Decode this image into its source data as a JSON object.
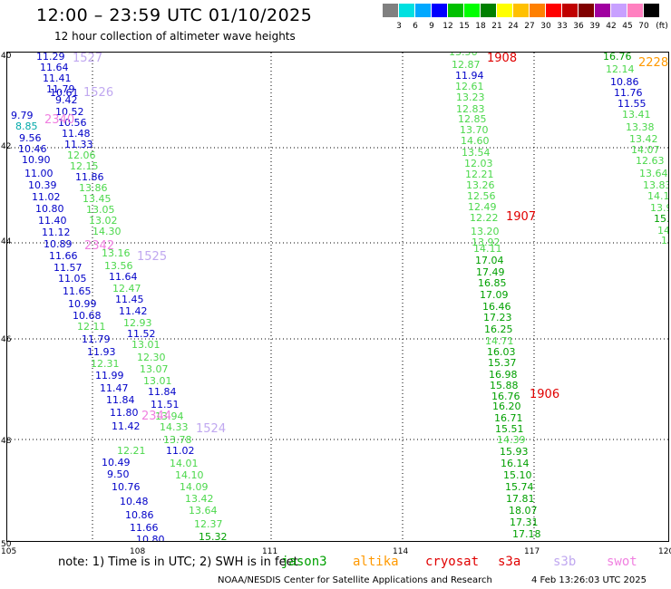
{
  "header": {
    "title": "12:00 – 23:59 UTC 01/10/2025",
    "subtitle": "12 hour collection of altimeter wave heights"
  },
  "colorbar": {
    "unit": "(ft)",
    "colors": [
      "#808080",
      "#00e0e0",
      "#00a8ff",
      "#0000ff",
      "#00c000",
      "#00ff00",
      "#008000",
      "#ffff00",
      "#ffc000",
      "#ff8000",
      "#ff0000",
      "#c00000",
      "#800000",
      "#a000a0",
      "#c8a0ff",
      "#ff80c0",
      "#000000"
    ],
    "labels": [
      "3",
      "6",
      "9",
      "12",
      "15",
      "18",
      "21",
      "24",
      "27",
      "30",
      "33",
      "36",
      "39",
      "42",
      "45",
      "70"
    ]
  },
  "map": {
    "lat_labels": [
      "40",
      "42",
      "44",
      "46",
      "48",
      "50"
    ],
    "lon_labels": [
      "105",
      "108",
      "111",
      "114",
      "117",
      "120"
    ]
  },
  "colors": {
    "blue": "#0000c8",
    "light_green": "#4cd84c",
    "green": "#00a000",
    "teal": "#00a8a8",
    "lavender": "#c0a8f0",
    "pink": "#f080e0",
    "red": "#e00000",
    "orange": "#ff9900"
  },
  "track_labels": [
    {
      "text": "11.29",
      "c": "blue"
    },
    {
      "text": "11.64",
      "c": "blue"
    },
    {
      "text": "11.41",
      "c": "blue"
    },
    {
      "text": "11.79",
      "c": "blue"
    },
    {
      "text": "10.61",
      "c": "blue"
    },
    {
      "text": "9.42",
      "c": "blue"
    },
    {
      "text": "10.52",
      "c": "blue"
    },
    {
      "text": "10.56",
      "c": "blue"
    },
    {
      "text": "11.48",
      "c": "blue"
    },
    {
      "text": "11.33",
      "c": "blue"
    },
    {
      "text": "12.06",
      "c": "light_green"
    },
    {
      "text": "12.15",
      "c": "light_green"
    },
    {
      "text": "11.86",
      "c": "blue"
    },
    {
      "text": "13.86",
      "c": "light_green"
    },
    {
      "text": "13.45",
      "c": "light_green"
    },
    {
      "text": "13.05",
      "c": "light_green"
    },
    {
      "text": "13.02",
      "c": "light_green"
    },
    {
      "text": "14.30",
      "c": "light_green"
    },
    {
      "text": "13.16",
      "c": "light_green"
    },
    {
      "text": "13.56",
      "c": "light_green"
    },
    {
      "text": "11.64",
      "c": "blue"
    },
    {
      "text": "12.47",
      "c": "light_green"
    },
    {
      "text": "11.45",
      "c": "blue"
    },
    {
      "text": "11.42",
      "c": "blue"
    },
    {
      "text": "12.93",
      "c": "light_green"
    },
    {
      "text": "11.52",
      "c": "blue"
    },
    {
      "text": "13.01",
      "c": "light_green"
    },
    {
      "text": "12.30",
      "c": "light_green"
    },
    {
      "text": "13.07",
      "c": "light_green"
    },
    {
      "text": "13.01",
      "c": "light_green"
    },
    {
      "text": "11.84",
      "c": "blue"
    },
    {
      "text": "11.51",
      "c": "blue"
    },
    {
      "text": "13.94",
      "c": "light_green"
    },
    {
      "text": "14.33",
      "c": "light_green"
    },
    {
      "text": "13.78",
      "c": "light_green"
    },
    {
      "text": "9.79",
      "c": "blue"
    },
    {
      "text": "8.85",
      "c": "teal"
    },
    {
      "text": "9.56",
      "c": "blue"
    },
    {
      "text": "10.46",
      "c": "blue"
    },
    {
      "text": "10.90",
      "c": "blue"
    },
    {
      "text": "11.00",
      "c": "blue"
    },
    {
      "text": "10.39",
      "c": "blue"
    },
    {
      "text": "11.02",
      "c": "blue"
    },
    {
      "text": "10.80",
      "c": "blue"
    },
    {
      "text": "11.40",
      "c": "blue"
    },
    {
      "text": "11.12",
      "c": "blue"
    },
    {
      "text": "10.89",
      "c": "blue"
    },
    {
      "text": "11.66",
      "c": "blue"
    },
    {
      "text": "11.57",
      "c": "blue"
    },
    {
      "text": "11.05",
      "c": "blue"
    },
    {
      "text": "11.65",
      "c": "blue"
    },
    {
      "text": "10.99",
      "c": "blue"
    },
    {
      "text": "10.68",
      "c": "blue"
    },
    {
      "text": "12.11",
      "c": "light_green"
    },
    {
      "text": "11.79",
      "c": "blue"
    },
    {
      "text": "11.93",
      "c": "blue"
    },
    {
      "text": "12.31",
      "c": "light_green"
    },
    {
      "text": "11.99",
      "c": "blue"
    },
    {
      "text": "11.47",
      "c": "blue"
    },
    {
      "text": "11.84",
      "c": "blue"
    },
    {
      "text": "11.80",
      "c": "blue"
    },
    {
      "text": "11.42",
      "c": "blue"
    },
    {
      "text": "12.21",
      "c": "light_green"
    },
    {
      "text": "10.49",
      "c": "blue"
    },
    {
      "text": "9.50",
      "c": "blue"
    },
    {
      "text": "10.76",
      "c": "blue"
    },
    {
      "text": "10.48",
      "c": "blue"
    },
    {
      "text": "10.86",
      "c": "blue"
    },
    {
      "text": "11.66",
      "c": "blue"
    },
    {
      "text": "10.80",
      "c": "blue"
    },
    {
      "text": "11.02",
      "c": "blue"
    },
    {
      "text": "14.01",
      "c": "light_green"
    },
    {
      "text": "14.10",
      "c": "light_green"
    },
    {
      "text": "14.09",
      "c": "light_green"
    },
    {
      "text": "13.42",
      "c": "light_green"
    },
    {
      "text": "13.64",
      "c": "light_green"
    },
    {
      "text": "12.37",
      "c": "light_green"
    },
    {
      "text": "15.32",
      "c": "green"
    },
    {
      "text": "13.56",
      "c": "light_green"
    },
    {
      "text": "12.87",
      "c": "light_green"
    },
    {
      "text": "11.94",
      "c": "blue"
    },
    {
      "text": "12.61",
      "c": "light_green"
    },
    {
      "text": "13.23",
      "c": "light_green"
    },
    {
      "text": "12.83",
      "c": "light_green"
    },
    {
      "text": "12.85",
      "c": "light_green"
    },
    {
      "text": "13.70",
      "c": "light_green"
    },
    {
      "text": "14.60",
      "c": "light_green"
    },
    {
      "text": "13.54",
      "c": "light_green"
    },
    {
      "text": "12.03",
      "c": "light_green"
    },
    {
      "text": "12.21",
      "c": "light_green"
    },
    {
      "text": "13.26",
      "c": "light_green"
    },
    {
      "text": "12.56",
      "c": "light_green"
    },
    {
      "text": "12.49",
      "c": "light_green"
    },
    {
      "text": "12.22",
      "c": "light_green"
    },
    {
      "text": "13.20",
      "c": "light_green"
    },
    {
      "text": "13.92",
      "c": "light_green"
    },
    {
      "text": "14.11",
      "c": "light_green"
    },
    {
      "text": "17.04",
      "c": "green"
    },
    {
      "text": "17.49",
      "c": "green"
    },
    {
      "text": "16.85",
      "c": "green"
    },
    {
      "text": "17.09",
      "c": "green"
    },
    {
      "text": "16.46",
      "c": "green"
    },
    {
      "text": "17.23",
      "c": "green"
    },
    {
      "text": "16.25",
      "c": "green"
    },
    {
      "text": "14.71",
      "c": "light_green"
    },
    {
      "text": "16.03",
      "c": "green"
    },
    {
      "text": "15.37",
      "c": "green"
    },
    {
      "text": "16.98",
      "c": "green"
    },
    {
      "text": "15.88",
      "c": "green"
    },
    {
      "text": "16.76",
      "c": "green"
    },
    {
      "text": "16.20",
      "c": "green"
    },
    {
      "text": "16.71",
      "c": "green"
    },
    {
      "text": "15.51",
      "c": "green"
    },
    {
      "text": "14.39",
      "c": "light_green"
    },
    {
      "text": "15.93",
      "c": "green"
    },
    {
      "text": "16.14",
      "c": "green"
    },
    {
      "text": "15.10",
      "c": "green"
    },
    {
      "text": "15.74",
      "c": "green"
    },
    {
      "text": "17.81",
      "c": "green"
    },
    {
      "text": "18.07",
      "c": "green"
    },
    {
      "text": "17.31",
      "c": "green"
    },
    {
      "text": "17.18",
      "c": "green"
    },
    {
      "text": "16.76",
      "c": "green"
    },
    {
      "text": "12.14",
      "c": "light_green"
    },
    {
      "text": "10.86",
      "c": "blue"
    },
    {
      "text": "11.76",
      "c": "blue"
    },
    {
      "text": "11.55",
      "c": "blue"
    },
    {
      "text": "13.41",
      "c": "light_green"
    },
    {
      "text": "13.38",
      "c": "light_green"
    },
    {
      "text": "13.42",
      "c": "light_green"
    },
    {
      "text": "14.07",
      "c": "light_green"
    },
    {
      "text": "12.63",
      "c": "light_green"
    },
    {
      "text": "13.64",
      "c": "light_green"
    },
    {
      "text": "13.83",
      "c": "light_green"
    },
    {
      "text": "14.17",
      "c": "light_green"
    },
    {
      "text": "13.9",
      "c": "light_green"
    },
    {
      "text": "15.6",
      "c": "green"
    },
    {
      "text": "14.",
      "c": "light_green"
    },
    {
      "text": "13.",
      "c": "light_green"
    },
    {
      "text": "1",
      "c": "light_green"
    }
  ],
  "time_labels": [
    {
      "text": "1527",
      "c": "lavender"
    },
    {
      "text": "1526",
      "c": "lavender"
    },
    {
      "text": "2340",
      "c": "pink"
    },
    {
      "text": "2342",
      "c": "pink"
    },
    {
      "text": "1525",
      "c": "lavender"
    },
    {
      "text": "2344",
      "c": "pink"
    },
    {
      "text": "1524",
      "c": "lavender"
    },
    {
      "text": "1908",
      "c": "red"
    },
    {
      "text": "1907",
      "c": "red"
    },
    {
      "text": "1906",
      "c": "red"
    },
    {
      "text": "2228",
      "c": "orange"
    }
  ],
  "footer": {
    "note": "note: 1) Time is in UTC; 2) SWH is in feet",
    "satellites": [
      {
        "label": "jason3",
        "c": "green"
      },
      {
        "label": "altika",
        "c": "orange"
      },
      {
        "label": "cryosat",
        "c": "red"
      },
      {
        "label": "s3a",
        "c": "red"
      },
      {
        "label": "s3b",
        "c": "lavender"
      },
      {
        "label": "swot",
        "c": "pink"
      }
    ],
    "credit": "NOAA/NESDIS Center for Satellite Applications and Research",
    "generated": "4 Feb 13:26:03 UTC 2025"
  }
}
